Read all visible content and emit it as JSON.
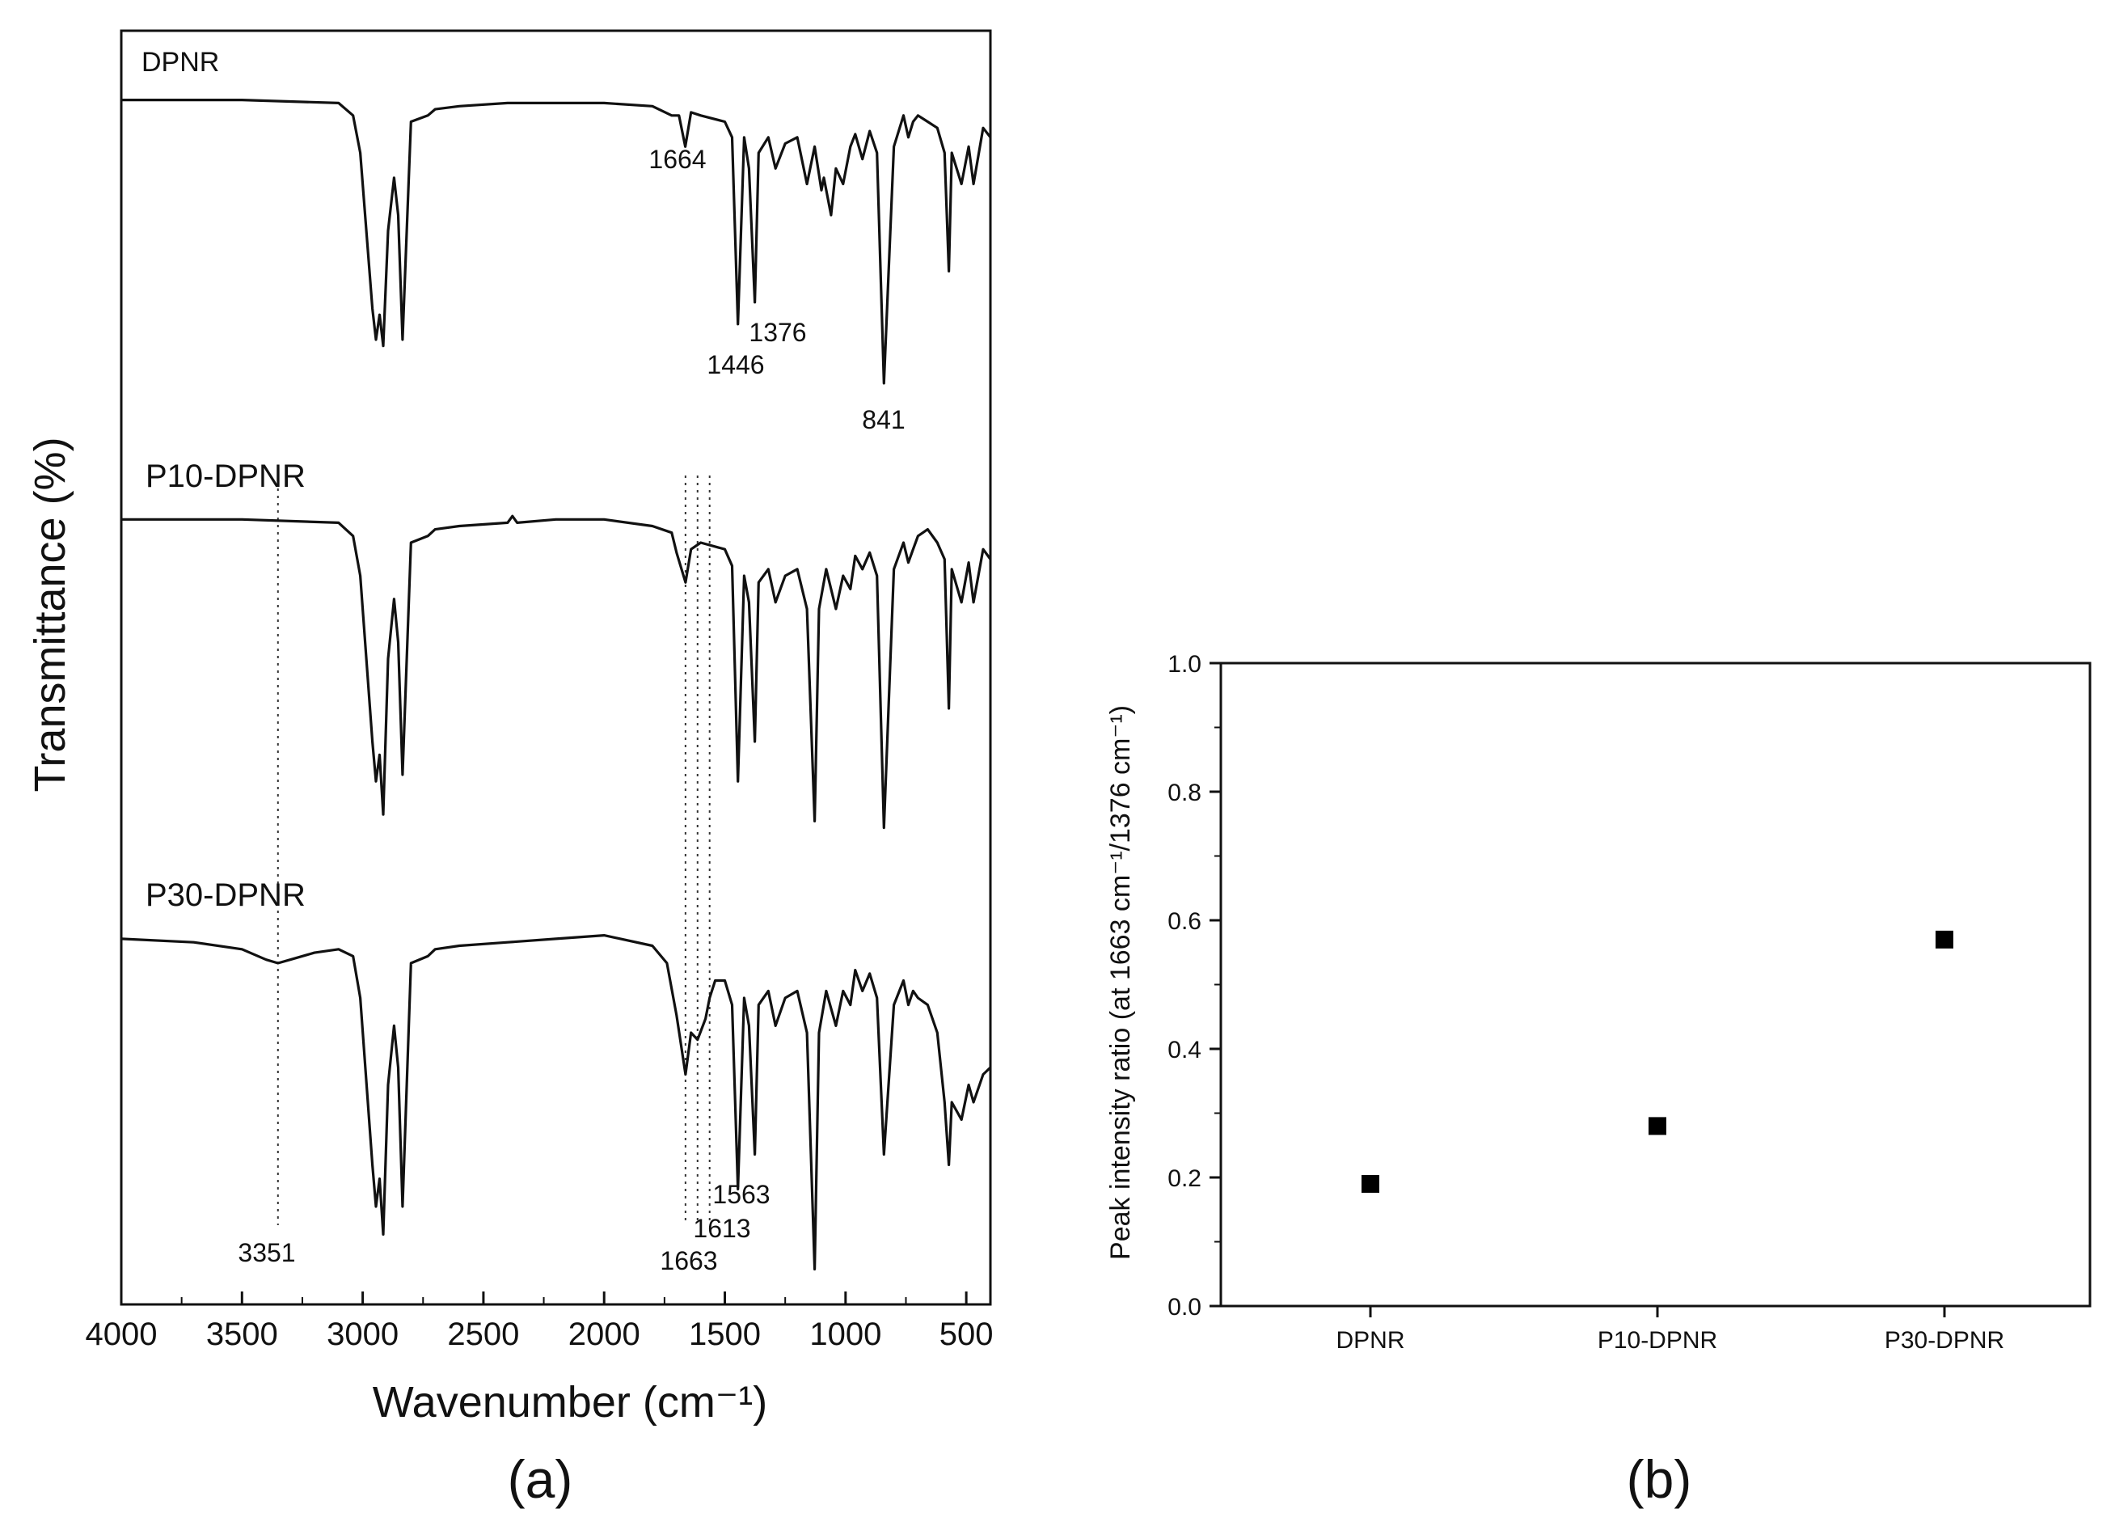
{
  "chart_data": [
    {
      "panel": "(a)",
      "type": "line",
      "title": "",
      "xlabel": "Wavenumber (cm⁻¹)",
      "ylabel": "Transmittance (%)",
      "xlim": [
        4000,
        400
      ],
      "xticks": [
        4000,
        3500,
        3000,
        2500,
        2000,
        1500,
        1000,
        500
      ],
      "grid": false,
      "legend": "none",
      "series": [
        {
          "name": "DPNR",
          "x": [
            4000,
            3500,
            3100,
            3040,
            3010,
            2960,
            2945,
            2930,
            2915,
            2895,
            2870,
            2853,
            2835,
            2800,
            2730,
            2700,
            2600,
            2400,
            2200,
            2000,
            1800,
            1720,
            1690,
            1664,
            1640,
            1600,
            1500,
            1470,
            1446,
            1420,
            1400,
            1376,
            1360,
            1320,
            1290,
            1250,
            1200,
            1160,
            1128,
            1100,
            1090,
            1060,
            1040,
            1010,
            980,
            960,
            930,
            900,
            870,
            841,
            800,
            760,
            740,
            720,
            700,
            660,
            620,
            590,
            572,
            560,
            520,
            490,
            470,
            430,
            400
          ],
          "y": [
            0.97,
            0.97,
            0.96,
            0.92,
            0.8,
            0.3,
            0.2,
            0.28,
            0.18,
            0.55,
            0.72,
            0.6,
            0.2,
            0.9,
            0.92,
            0.94,
            0.95,
            0.96,
            0.96,
            0.96,
            0.95,
            0.92,
            0.92,
            0.82,
            0.93,
            0.92,
            0.9,
            0.85,
            0.25,
            0.85,
            0.75,
            0.32,
            0.8,
            0.85,
            0.75,
            0.83,
            0.85,
            0.7,
            0.82,
            0.68,
            0.72,
            0.6,
            0.75,
            0.7,
            0.82,
            0.86,
            0.78,
            0.87,
            0.8,
            0.06,
            0.82,
            0.92,
            0.85,
            0.9,
            0.92,
            0.9,
            0.88,
            0.8,
            0.42,
            0.8,
            0.7,
            0.82,
            0.7,
            0.88,
            0.85
          ]
        },
        {
          "name": "P10-DPNR",
          "x": [
            4000,
            3500,
            3100,
            3040,
            3010,
            2960,
            2945,
            2930,
            2915,
            2895,
            2870,
            2853,
            2835,
            2800,
            2730,
            2700,
            2600,
            2400,
            2380,
            2360,
            2200,
            2000,
            1800,
            1720,
            1700,
            1663,
            1640,
            1600,
            1500,
            1470,
            1446,
            1420,
            1400,
            1376,
            1360,
            1320,
            1290,
            1250,
            1200,
            1160,
            1128,
            1110,
            1080,
            1040,
            1010,
            980,
            960,
            930,
            900,
            870,
            841,
            800,
            760,
            740,
            720,
            700,
            660,
            620,
            590,
            572,
            560,
            520,
            490,
            470,
            430,
            400
          ],
          "y": [
            0.97,
            0.97,
            0.96,
            0.92,
            0.8,
            0.3,
            0.18,
            0.26,
            0.08,
            0.55,
            0.73,
            0.6,
            0.2,
            0.9,
            0.92,
            0.94,
            0.95,
            0.96,
            0.98,
            0.96,
            0.97,
            0.97,
            0.95,
            0.93,
            0.87,
            0.78,
            0.88,
            0.9,
            0.88,
            0.83,
            0.18,
            0.8,
            0.72,
            0.3,
            0.78,
            0.82,
            0.72,
            0.8,
            0.82,
            0.7,
            0.06,
            0.7,
            0.82,
            0.7,
            0.8,
            0.76,
            0.86,
            0.82,
            0.87,
            0.8,
            0.04,
            0.82,
            0.9,
            0.84,
            0.88,
            0.92,
            0.94,
            0.9,
            0.85,
            0.4,
            0.82,
            0.72,
            0.84,
            0.72,
            0.88,
            0.85
          ]
        },
        {
          "name": "P30-DPNR",
          "x": [
            4000,
            3700,
            3500,
            3400,
            3351,
            3300,
            3200,
            3100,
            3040,
            3010,
            2960,
            2945,
            2930,
            2915,
            2895,
            2870,
            2853,
            2835,
            2800,
            2730,
            2700,
            2600,
            2400,
            2200,
            2000,
            1800,
            1740,
            1700,
            1663,
            1640,
            1613,
            1580,
            1563,
            1540,
            1500,
            1470,
            1446,
            1420,
            1400,
            1376,
            1360,
            1320,
            1290,
            1250,
            1200,
            1160,
            1128,
            1110,
            1080,
            1040,
            1010,
            980,
            960,
            930,
            900,
            870,
            841,
            800,
            760,
            740,
            720,
            700,
            660,
            620,
            590,
            572,
            560,
            520,
            490,
            470,
            430,
            400
          ],
          "y": [
            0.97,
            0.96,
            0.94,
            0.91,
            0.9,
            0.91,
            0.93,
            0.94,
            0.92,
            0.8,
            0.32,
            0.2,
            0.28,
            0.12,
            0.55,
            0.72,
            0.6,
            0.2,
            0.9,
            0.92,
            0.94,
            0.95,
            0.96,
            0.97,
            0.98,
            0.95,
            0.9,
            0.75,
            0.58,
            0.7,
            0.68,
            0.74,
            0.8,
            0.85,
            0.85,
            0.78,
            0.25,
            0.8,
            0.72,
            0.35,
            0.78,
            0.82,
            0.72,
            0.8,
            0.82,
            0.7,
            0.02,
            0.7,
            0.82,
            0.72,
            0.82,
            0.78,
            0.88,
            0.82,
            0.87,
            0.8,
            0.35,
            0.78,
            0.85,
            0.78,
            0.82,
            0.8,
            0.78,
            0.7,
            0.5,
            0.32,
            0.5,
            0.45,
            0.55,
            0.5,
            0.58,
            0.6
          ]
        }
      ],
      "annotations": [
        {
          "text": "1664",
          "series": "DPNR",
          "x": 1664
        },
        {
          "text": "1446",
          "series": "DPNR",
          "x": 1446
        },
        {
          "text": "1376",
          "series": "DPNR",
          "x": 1376
        },
        {
          "text": "841",
          "series": "DPNR",
          "x": 841
        },
        {
          "text": "3351",
          "series": "P30-DPNR",
          "x": 3351
        },
        {
          "text": "1663",
          "series": "P30-DPNR",
          "x": 1663
        },
        {
          "text": "1613",
          "series": "P30-DPNR",
          "x": 1613
        },
        {
          "text": "1563",
          "series": "P30-DPNR",
          "x": 1563
        }
      ],
      "guide_lines": [
        3351,
        1663,
        1613,
        1563
      ]
    },
    {
      "panel": "(b)",
      "type": "scatter",
      "title": "",
      "xlabel": "",
      "ylabel": "Peak intensity ratio (at 1663 cm⁻¹/1376 cm⁻¹)",
      "ylim": [
        0.0,
        1.0
      ],
      "yticks": [
        "0.0",
        "0.2",
        "0.4",
        "0.6",
        "0.8",
        "1.0"
      ],
      "categories": [
        "DPNR",
        "P10-DPNR",
        "P30-DPNR"
      ],
      "values": [
        0.19,
        0.28,
        0.57
      ],
      "grid": false,
      "legend": "none"
    }
  ]
}
